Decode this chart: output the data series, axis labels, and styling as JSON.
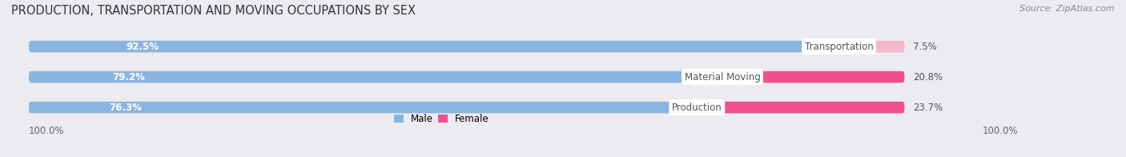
{
  "title": "PRODUCTION, TRANSPORTATION AND MOVING OCCUPATIONS BY SEX",
  "source": "Source: ZipAtlas.com",
  "categories": [
    "Transportation",
    "Material Moving",
    "Production"
  ],
  "male_values": [
    92.5,
    79.2,
    76.3
  ],
  "female_values": [
    7.5,
    20.8,
    23.7
  ],
  "male_color": "#8ab4e0",
  "female_colors": [
    "#f4b8cc",
    "#f0508a",
    "#f0508a"
  ],
  "label_color_male": "#ffffff",
  "category_label_color": "#555555",
  "bar_height": 0.38,
  "axis_label_left": "100.0%",
  "axis_label_right": "100.0%",
  "background_color": "#ebebf0",
  "bar_background": "#dcdce6",
  "title_fontsize": 10.5,
  "source_fontsize": 8,
  "tick_fontsize": 8.5,
  "label_fontsize": 8.5,
  "cat_fontsize": 8.5
}
